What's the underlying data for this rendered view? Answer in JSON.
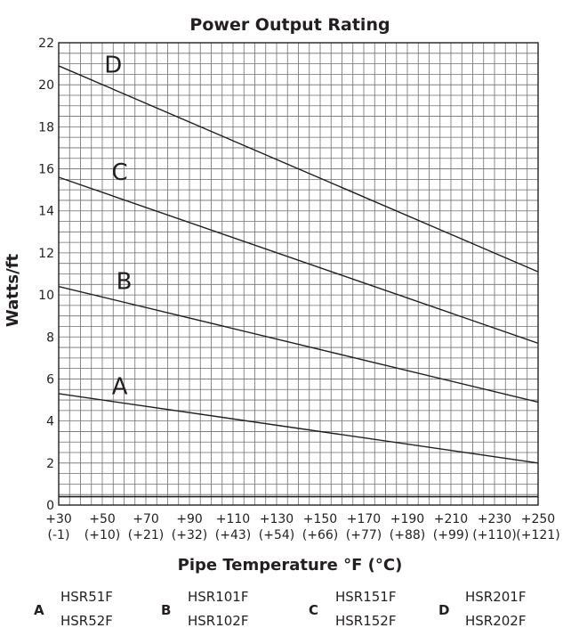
{
  "chart_data": {
    "type": "line",
    "title": "Power Output Rating",
    "xlabel": "Pipe Temperature °F (°C)",
    "ylabel": "Watts/ft",
    "xlim": [
      30,
      250
    ],
    "ylim": [
      0,
      22
    ],
    "grid": true,
    "x_ticks": [
      {
        "value": 30,
        "f": "+30",
        "c": "(-1)"
      },
      {
        "value": 50,
        "f": "+50",
        "c": "(+10)"
      },
      {
        "value": 70,
        "f": "+70",
        "c": "(+21)"
      },
      {
        "value": 90,
        "f": "+90",
        "c": "(+32)"
      },
      {
        "value": 110,
        "f": "+110",
        "c": "(+43)"
      },
      {
        "value": 130,
        "f": "+130",
        "c": "(+54)"
      },
      {
        "value": 150,
        "f": "+150",
        "c": "(+66)"
      },
      {
        "value": 170,
        "f": "+170",
        "c": "(+77)"
      },
      {
        "value": 190,
        "f": "+190",
        "c": "(+88)"
      },
      {
        "value": 210,
        "f": "+210",
        "c": "(+99)"
      },
      {
        "value": 230,
        "f": "+230",
        "c": "(+110)"
      },
      {
        "value": 250,
        "f": "+250",
        "c": "(+121)"
      }
    ],
    "y_ticks": [
      0,
      2,
      4,
      6,
      8,
      10,
      12,
      14,
      16,
      18,
      20,
      22
    ],
    "series": [
      {
        "name": "A",
        "x": [
          30,
          250
        ],
        "y": [
          5.3,
          2.0
        ]
      },
      {
        "name": "B",
        "x": [
          30,
          250
        ],
        "y": [
          10.4,
          4.9
        ]
      },
      {
        "name": "C",
        "x": [
          30,
          250
        ],
        "y": [
          15.6,
          7.7
        ]
      },
      {
        "name": "D",
        "x": [
          30,
          250
        ],
        "y": [
          20.9,
          11.1
        ]
      }
    ],
    "series_labels": [
      {
        "name": "A",
        "x": 58,
        "y": 5.6
      },
      {
        "name": "B",
        "x": 60,
        "y": 10.6
      },
      {
        "name": "C",
        "x": 58,
        "y": 15.8
      },
      {
        "name": "D",
        "x": 55,
        "y": 20.9
      }
    ],
    "reference_line_y": 0.4
  },
  "legend": [
    {
      "key": "A",
      "models": [
        "HSR51F",
        "HSR52F"
      ]
    },
    {
      "key": "B",
      "models": [
        "HSR101F",
        "HSR102F"
      ]
    },
    {
      "key": "C",
      "models": [
        "HSR151F",
        "HSR152F"
      ]
    },
    {
      "key": "D",
      "models": [
        "HSR201F",
        "HSR202F"
      ]
    }
  ],
  "colors": {
    "ink": "#231f20",
    "grid": "#6d6e71"
  }
}
